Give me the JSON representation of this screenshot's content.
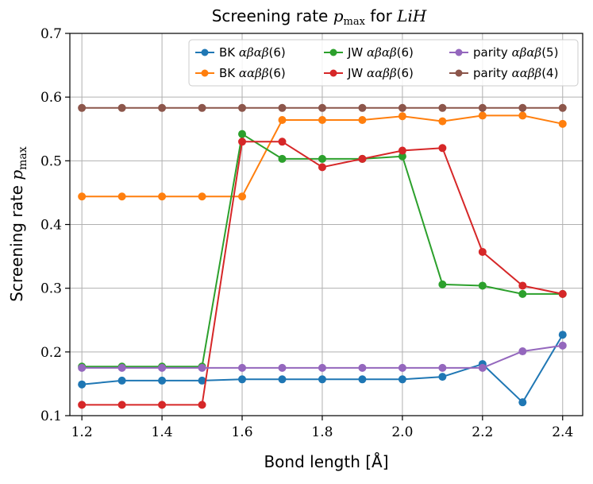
{
  "chart_data": {
    "type": "line",
    "title": "Screening rate p_max for LiH",
    "xlabel": "Bond length [Å]",
    "ylabel": "Screening rate p_max",
    "xlim": [
      1.17,
      2.45
    ],
    "ylim": [
      0.1,
      0.7
    ],
    "xticks": [
      1.2,
      1.4,
      1.6,
      1.8,
      2.0,
      2.2,
      2.4
    ],
    "yticks": [
      0.1,
      0.2,
      0.3,
      0.4,
      0.5,
      0.6,
      0.7
    ],
    "grid": true,
    "legend_position": "top-right",
    "x": [
      1.2,
      1.3,
      1.4,
      1.5,
      1.6,
      1.7,
      1.8,
      1.9,
      2.0,
      2.1,
      2.2,
      2.3,
      2.4
    ],
    "series": [
      {
        "name": "BK αβαβ(6)",
        "color": "#1f77b4",
        "values": [
          0.149,
          0.155,
          0.155,
          0.155,
          0.157,
          0.157,
          0.157,
          0.157,
          0.157,
          0.161,
          0.181,
          0.121,
          0.227
        ]
      },
      {
        "name": "BK ααββ(6)",
        "color": "#ff7f0e",
        "values": [
          0.444,
          0.444,
          0.444,
          0.444,
          0.444,
          0.564,
          0.564,
          0.564,
          0.57,
          0.562,
          0.571,
          0.571,
          0.558
        ]
      },
      {
        "name": "JW αβαβ(6)",
        "color": "#2ca02c",
        "values": [
          0.177,
          0.177,
          0.177,
          0.177,
          0.542,
          0.503,
          0.503,
          0.503,
          0.507,
          0.306,
          0.304,
          0.291,
          0.291
        ]
      },
      {
        "name": "JW ααββ(6)",
        "color": "#d62728",
        "values": [
          0.117,
          0.117,
          0.117,
          0.117,
          0.53,
          0.53,
          0.49,
          0.503,
          0.516,
          0.52,
          0.357,
          0.304,
          0.291
        ]
      },
      {
        "name": "parity αβαβ(5)",
        "color": "#9467bd",
        "values": [
          0.175,
          0.175,
          0.175,
          0.175,
          0.175,
          0.175,
          0.175,
          0.175,
          0.175,
          0.175,
          0.175,
          0.201,
          0.21
        ]
      },
      {
        "name": "parity ααββ(4)",
        "color": "#8c564b",
        "values": [
          0.583,
          0.583,
          0.583,
          0.583,
          0.583,
          0.583,
          0.583,
          0.583,
          0.583,
          0.583,
          0.583,
          0.583,
          0.583
        ]
      }
    ]
  },
  "title_parts": {
    "prefix": "Screening rate ",
    "p": "p",
    "sub": "max",
    "middle": " for ",
    "molecule": "LiH"
  },
  "ylabel_parts": {
    "prefix": "Screening rate ",
    "p": "p",
    "sub": "max"
  },
  "legend": [
    {
      "prefix": "BK ",
      "formula": "αβαβ",
      "suffix": "(6)"
    },
    {
      "prefix": "BK ",
      "formula": "ααββ",
      "suffix": "(6)"
    },
    {
      "prefix": "JW ",
      "formula": "αβαβ",
      "suffix": "(6)"
    },
    {
      "prefix": "JW ",
      "formula": "ααββ",
      "suffix": "(6)"
    },
    {
      "prefix": "parity ",
      "formula": "αβαβ",
      "suffix": "(5)"
    },
    {
      "prefix": "parity ",
      "formula": "ααββ",
      "suffix": "(4)"
    }
  ]
}
